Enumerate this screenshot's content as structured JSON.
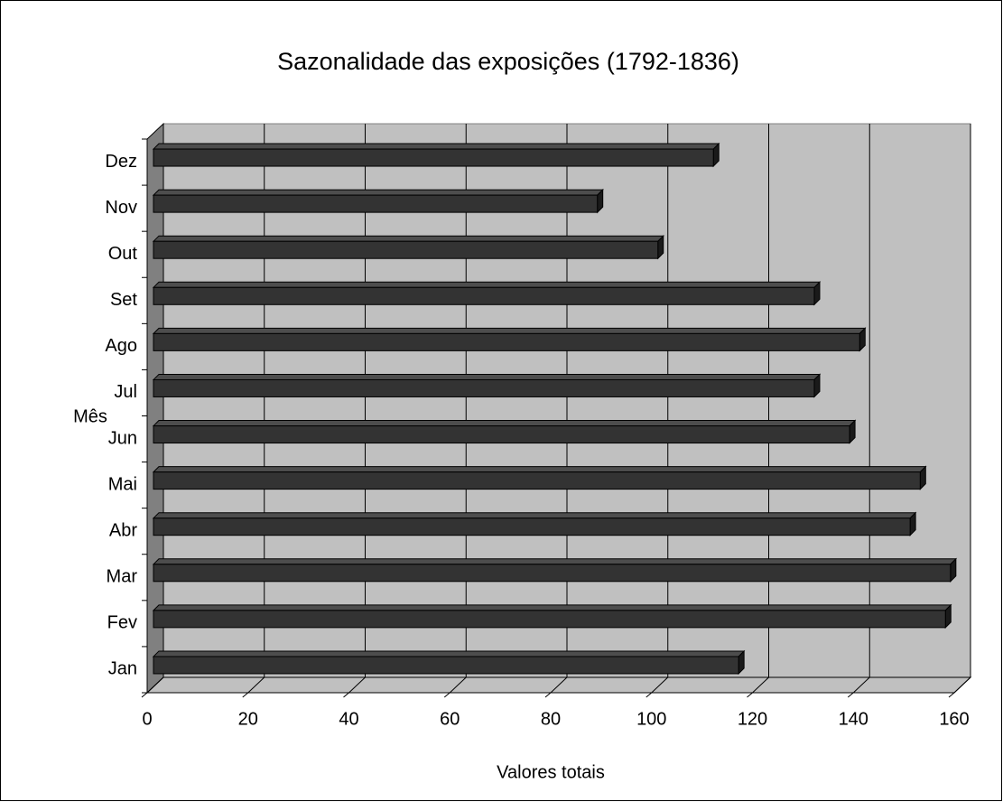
{
  "chart_data": {
    "type": "bar",
    "orientation": "horizontal",
    "title": "Sazonalidade das exposições (1792-1836)",
    "x_label": "Valores totais",
    "y_label": "Mês",
    "categories": [
      "Jan",
      "Fev",
      "Mar",
      "Abr",
      "Mai",
      "Jun",
      "Jul",
      "Ago",
      "Set",
      "Out",
      "Nov",
      "Dez"
    ],
    "values": [
      116,
      157,
      158,
      150,
      152,
      138,
      131,
      140,
      131,
      100,
      88,
      111
    ],
    "color": "#333333",
    "xlim": [
      0,
      160
    ],
    "xticks": [
      0,
      20,
      40,
      60,
      80,
      100,
      120,
      140,
      160
    ],
    "grid": true
  }
}
